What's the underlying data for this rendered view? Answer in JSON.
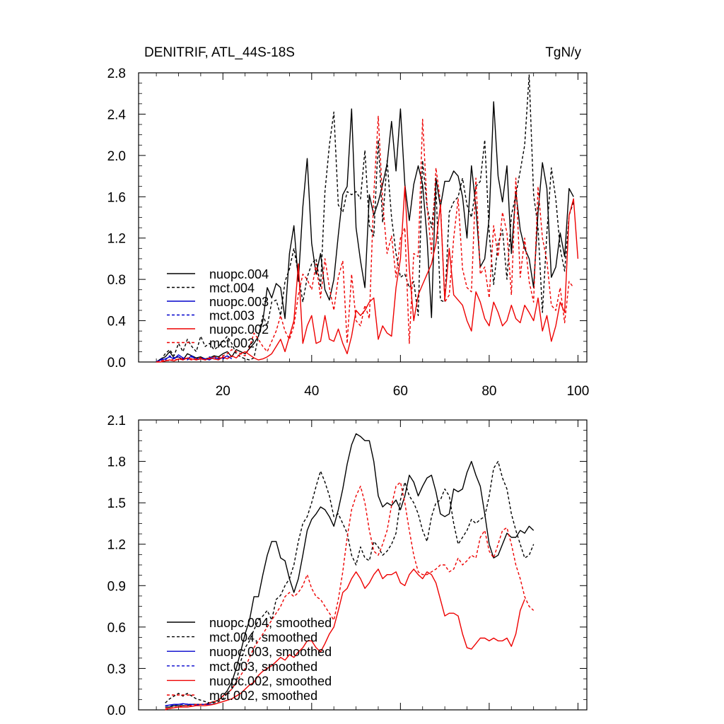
{
  "header": {
    "title": "DENITRIF, ATL_44S-18S",
    "units": "TgN/y"
  },
  "colors": {
    "black": "#000000",
    "blue": "#0000cc",
    "red": "#ee0000"
  },
  "chart_data": [
    {
      "type": "line",
      "name": "annual",
      "xlim": [
        1,
        102
      ],
      "ylim": [
        0.0,
        2.8
      ],
      "xticks": [
        20,
        40,
        60,
        80,
        100
      ],
      "yticks": [
        0.0,
        0.4,
        0.8,
        1.2,
        1.6,
        2.0,
        2.4,
        2.8
      ],
      "ytick_labels": [
        "0.0",
        "0.4",
        "0.8",
        "1.2",
        "1.6",
        "2.0",
        "2.4",
        "2.8"
      ],
      "xtick_labels": [
        "20",
        "40",
        "60",
        "80",
        "100"
      ],
      "legend_position": "bottom-left",
      "series": [
        {
          "name": "nuopc.004",
          "color": "black",
          "dash": false,
          "x_start": 5,
          "values": [
            0.0,
            0.03,
            0.05,
            0.1,
            0.04,
            0.05,
            0.02,
            0.08,
            0.06,
            0.04,
            0.05,
            0.03,
            0.04,
            0.06,
            0.05,
            0.08,
            0.1,
            0.05,
            0.12,
            0.1,
            0.08,
            0.13,
            0.18,
            0.25,
            0.4,
            0.72,
            0.62,
            0.76,
            0.72,
            0.42,
            1.05,
            1.32,
            0.78,
            1.5,
            1.97,
            1.15,
            0.85,
            1.05,
            0.7,
            0.6,
            0.8,
            1.23,
            1.62,
            1.7,
            2.45,
            1.3,
            0.98,
            0.72,
            1.62,
            1.42,
            1.55,
            1.72,
            1.92,
            2.33,
            1.85,
            2.45,
            1.72,
            1.37,
            1.72,
            1.9,
            1.72,
            1.2,
            0.43,
            1.78,
            1.5,
            1.75,
            1.75,
            1.85,
            1.8,
            1.6,
            1.2,
            1.9,
            1.5,
            0.92,
            1.0,
            1.4,
            2.52,
            1.8,
            1.55,
            1.9,
            1.05,
            1.65,
            1.28,
            1.1,
            1.0,
            0.72,
            1.45,
            1.93,
            1.68,
            0.82,
            0.92,
            1.25,
            1.02,
            1.68,
            1.6
          ]
        },
        {
          "name": "mct.004",
          "color": "black",
          "dash": true,
          "x_start": 5,
          "values": [
            0.0,
            0.02,
            0.08,
            0.12,
            0.06,
            0.18,
            0.1,
            0.22,
            0.15,
            0.1,
            0.25,
            0.15,
            0.18,
            0.12,
            0.15,
            0.2,
            0.25,
            0.18,
            0.08,
            0.05,
            0.03,
            0.02,
            0.04,
            0.25,
            0.45,
            0.35,
            0.58,
            0.6,
            0.45,
            0.78,
            0.9,
            1.1,
            0.85,
            0.58,
            0.82,
            0.95,
            1.0,
            0.72,
            1.65,
            2.1,
            2.42,
            1.52,
            1.45,
            1.65,
            1.62,
            1.65,
            1.58,
            2.05,
            1.32,
            1.22,
            2.15,
            1.35,
            1.95,
            1.4,
            1.05,
            0.82,
            0.85,
            0.72,
            0.78,
            0.45,
            1.95,
            1.5,
            1.3,
            1.68,
            0.6,
            0.58,
            1.45,
            1.55,
            1.6,
            1.78,
            1.52,
            1.4,
            1.7,
            1.75,
            2.15,
            1.25,
            0.75,
            1.15,
            1.28,
            0.8,
            1.42,
            1.62,
            1.85,
            2.1,
            2.78,
            1.62,
            1.3,
            0.48,
            1.25,
            1.88,
            1.58,
            1.1,
            0.88,
            1.42,
            1.55
          ]
        },
        {
          "name": "nuopc.003",
          "color": "blue",
          "dash": false,
          "x_start": 5,
          "values": [
            0.0,
            0.02,
            0.03,
            0.05,
            0.03,
            0.07,
            0.04,
            0.03,
            0.06,
            0.02,
            0.04,
            0.03,
            0.02,
            0.05,
            0.03,
            0.04,
            0.06,
            0.03
          ]
        },
        {
          "name": "mct.003",
          "color": "blue",
          "dash": true,
          "x_start": 5,
          "values": [
            0.0,
            0.03,
            0.02,
            0.06,
            0.04,
            0.05,
            0.03,
            0.02,
            0.05,
            0.03,
            0.04,
            0.02,
            0.05,
            0.03,
            0.04,
            0.03,
            0.05,
            0.04
          ]
        },
        {
          "name": "nuopc.002",
          "color": "red",
          "dash": false,
          "x_start": 5,
          "values": [
            0.0,
            0.0,
            0.01,
            0.02,
            0.01,
            0.03,
            0.02,
            0.04,
            0.03,
            0.02,
            0.03,
            0.02,
            0.04,
            0.03,
            0.02,
            0.05,
            0.03,
            0.06,
            0.04,
            0.08,
            0.1,
            0.07,
            0.04,
            0.02,
            0.03,
            0.05,
            0.08,
            0.15,
            0.22,
            0.1,
            0.25,
            0.4,
            0.95,
            0.18,
            0.35,
            0.45,
            0.18,
            0.2,
            0.45,
            0.22,
            0.2,
            0.32,
            0.18,
            0.08,
            0.25,
            0.5,
            0.45,
            0.5,
            0.58,
            0.62,
            0.22,
            0.35,
            0.28,
            0.25,
            0.72,
            1.0,
            1.7,
            0.9,
            0.4,
            0.65,
            0.75,
            0.85,
            0.95,
            1.15,
            1.52,
            0.6,
            1.1,
            0.65,
            0.6,
            0.55,
            0.4,
            0.3,
            0.68,
            0.58,
            0.42,
            0.35,
            0.58,
            0.48,
            0.35,
            0.4,
            0.55,
            0.42,
            0.38,
            0.55,
            0.48,
            0.4,
            0.62,
            0.3,
            0.45,
            0.2,
            0.35,
            0.58,
            0.48,
            1.42,
            1.58,
            1.0
          ]
        },
        {
          "name": "mct.002",
          "color": "red",
          "dash": true,
          "x_start": 5,
          "values": [
            0.0,
            0.01,
            0.02,
            0.01,
            0.03,
            0.02,
            0.04,
            0.03,
            0.02,
            0.03,
            0.04,
            0.02,
            0.03,
            0.05,
            0.04,
            0.06,
            0.08,
            0.12,
            0.1,
            0.08,
            0.06,
            0.14,
            0.28,
            0.22,
            0.15,
            0.1,
            0.2,
            0.3,
            0.45,
            0.3,
            0.22,
            0.35,
            0.65,
            0.85,
            0.8,
            0.7,
            0.95,
            0.62,
            1.0,
            0.72,
            0.5,
            0.82,
            0.98,
            0.18,
            0.85,
            0.4,
            0.35,
            0.55,
            0.42,
            1.62,
            2.38,
            1.55,
            1.05,
            1.22,
            0.82,
            1.2,
            1.3,
            0.18,
            1.05,
            1.02,
            2.35,
            1.52,
            1.05,
            1.88,
            1.55,
            0.58,
            0.65,
            1.2,
            1.58,
            0.9,
            0.72,
            0.68,
            1.78,
            0.85,
            0.92,
            0.62,
            1.32,
            1.02,
            1.45,
            1.25,
            0.65,
            1.78,
            0.82,
            1.2,
            0.78,
            0.58,
            1.7,
            1.2,
            0.98,
            0.55,
            0.5,
            0.72,
            0.38,
            0.78,
            0.72
          ]
        }
      ]
    },
    {
      "type": "line",
      "name": "smoothed",
      "xlim": [
        1,
        102
      ],
      "ylim": [
        0.0,
        2.1
      ],
      "xticks": [
        20,
        40,
        60,
        80,
        100
      ],
      "yticks": [
        0.0,
        0.3,
        0.6,
        0.9,
        1.2,
        1.5,
        1.8,
        2.1
      ],
      "ytick_labels": [
        "0.0",
        "0.3",
        "0.6",
        "0.9",
        "1.2",
        "1.5",
        "1.8",
        "2.1"
      ],
      "legend_position": "bottom-left",
      "series": [
        {
          "name": "nuopc.004, smoothed",
          "color": "black",
          "dash": false,
          "x_start": 7,
          "values": [
            0.02,
            0.02,
            0.03,
            0.03,
            0.03,
            0.03,
            0.04,
            0.04,
            0.04,
            0.04,
            0.05,
            0.06,
            0.07,
            0.1,
            0.14,
            0.2,
            0.3,
            0.42,
            0.55,
            0.65,
            0.82,
            0.82,
            0.98,
            1.12,
            1.22,
            1.22,
            1.1,
            1.08,
            0.95,
            0.85,
            0.95,
            1.12,
            1.3,
            1.38,
            1.42,
            1.47,
            1.45,
            1.4,
            1.33,
            1.45,
            1.6,
            1.78,
            1.92,
            2.0,
            1.98,
            1.95,
            1.95,
            1.8,
            1.55,
            1.47,
            1.5,
            1.48,
            1.52,
            1.45,
            1.55,
            1.7,
            1.65,
            1.55,
            1.62,
            1.68,
            1.7,
            1.58,
            1.42,
            1.4,
            1.42,
            1.6,
            1.58,
            1.6,
            1.72,
            1.8,
            1.7,
            1.62,
            1.42,
            1.2,
            1.1,
            1.12,
            1.2,
            1.28,
            1.25,
            1.25,
            1.3,
            1.28,
            1.33,
            1.3
          ]
        },
        {
          "name": "mct.004, smoothed",
          "color": "black",
          "dash": true,
          "x_start": 7,
          "values": [
            0.05,
            0.08,
            0.1,
            0.12,
            0.1,
            0.12,
            0.1,
            0.08,
            0.07,
            0.06,
            0.05,
            0.05,
            0.06,
            0.08,
            0.12,
            0.15,
            0.2,
            0.35,
            0.45,
            0.5,
            0.58,
            0.65,
            0.68,
            0.72,
            0.65,
            0.8,
            0.83,
            0.9,
            0.95,
            1.05,
            1.22,
            1.35,
            1.4,
            1.5,
            1.62,
            1.73,
            1.65,
            1.55,
            1.4,
            1.42,
            1.35,
            1.28,
            1.12,
            1.05,
            1.18,
            1.1,
            1.08,
            1.22,
            1.18,
            1.12,
            1.15,
            1.2,
            1.28,
            1.52,
            1.65,
            1.55,
            1.5,
            1.42,
            1.3,
            1.22,
            1.4,
            1.5,
            1.52,
            1.6,
            1.55,
            1.35,
            1.2,
            1.25,
            1.3,
            1.38,
            1.35,
            1.38,
            1.4,
            1.55,
            1.75,
            1.8,
            1.68,
            1.6,
            1.42,
            1.3,
            1.2,
            1.1,
            1.12,
            1.2
          ]
        },
        {
          "name": "nuopc.003, smoothed",
          "color": "blue",
          "dash": false,
          "x_start": 7,
          "values": [
            0.03,
            0.035,
            0.04,
            0.04,
            0.045,
            0.04,
            0.04,
            0.035,
            0.04,
            0.04,
            0.04,
            0.04
          ]
        },
        {
          "name": "mct.003, smoothed",
          "color": "blue",
          "dash": true,
          "x_start": 7,
          "values": [
            0.03,
            0.032,
            0.035,
            0.04,
            0.04,
            0.042,
            0.04,
            0.038,
            0.04,
            0.042,
            0.04,
            0.04
          ]
        },
        {
          "name": "nuopc.002, smoothed",
          "color": "red",
          "dash": false,
          "x_start": 7,
          "values": [
            0.01,
            0.01,
            0.015,
            0.02,
            0.02,
            0.02,
            0.025,
            0.03,
            0.03,
            0.03,
            0.035,
            0.04,
            0.05,
            0.06,
            0.07,
            0.08,
            0.1,
            0.12,
            0.15,
            0.18,
            0.2,
            0.25,
            0.28,
            0.3,
            0.32,
            0.35,
            0.38,
            0.36,
            0.4,
            0.38,
            0.42,
            0.45,
            0.5,
            0.5,
            0.45,
            0.42,
            0.48,
            0.55,
            0.6,
            0.72,
            0.85,
            0.88,
            0.95,
            1.0,
            0.95,
            0.88,
            0.92,
            0.98,
            1.02,
            0.95,
            0.98,
            0.98,
            1.0,
            0.92,
            0.9,
            0.98,
            1.02,
            0.98,
            0.95,
            1.0,
            0.98,
            0.92,
            0.8,
            0.68,
            0.7,
            0.7,
            0.68,
            0.55,
            0.45,
            0.44,
            0.48,
            0.52,
            0.52,
            0.5,
            0.52,
            0.5,
            0.5,
            0.52,
            0.46,
            0.55,
            0.72,
            0.8
          ]
        },
        {
          "name": "mct.002, smoothed",
          "color": "red",
          "dash": true,
          "x_start": 7,
          "values": [
            0.0,
            0.01,
            0.02,
            0.02,
            0.03,
            0.03,
            0.03,
            0.04,
            0.04,
            0.04,
            0.05,
            0.06,
            0.07,
            0.1,
            0.12,
            0.15,
            0.2,
            0.25,
            0.3,
            0.38,
            0.45,
            0.5,
            0.55,
            0.6,
            0.65,
            0.7,
            0.75,
            0.82,
            0.85,
            0.82,
            0.85,
            0.9,
            0.98,
            0.88,
            0.82,
            0.8,
            0.75,
            0.7,
            0.65,
            0.8,
            1.0,
            1.25,
            1.45,
            1.55,
            1.62,
            1.5,
            1.3,
            1.15,
            1.12,
            1.2,
            1.3,
            1.48,
            1.62,
            1.65,
            1.5,
            1.3,
            1.12,
            1.0,
            0.98,
            0.98,
            1.0,
            1.02,
            1.05,
            1.05,
            1.0,
            1.02,
            1.1,
            1.05,
            1.08,
            1.12,
            1.1,
            1.25,
            1.3,
            1.15,
            1.1,
            1.2,
            1.3,
            1.32,
            1.2,
            1.05,
            0.95,
            0.82,
            0.75,
            0.72
          ]
        }
      ]
    }
  ]
}
